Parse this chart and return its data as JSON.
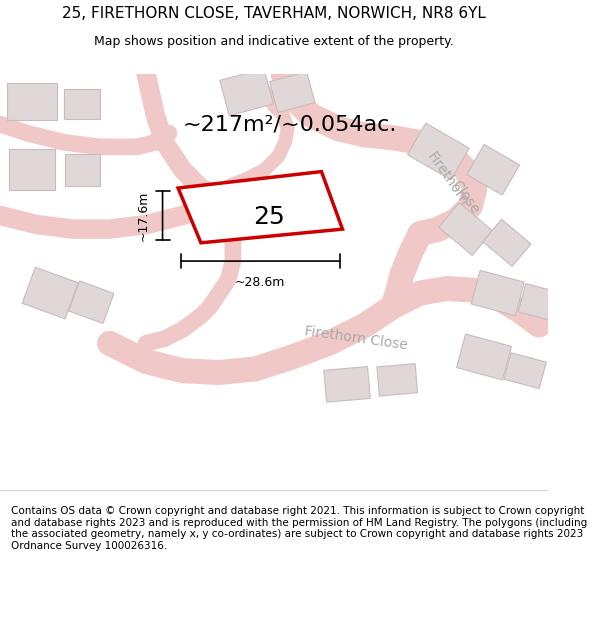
{
  "title_line1": "25, FIRETHORN CLOSE, TAVERHAM, NORWICH, NR8 6YL",
  "title_line2": "Map shows position and indicative extent of the property.",
  "footer_text": "Contains OS data © Crown copyright and database right 2021. This information is subject to Crown copyright and database rights 2023 and is reproduced with the permission of HM Land Registry. The polygons (including the associated geometry, namely x, y co-ordinates) are subject to Crown copyright and database rights 2023 Ordnance Survey 100026316.",
  "area_text": "~217m²/~0.054ac.",
  "width_label": "~28.6m",
  "height_label": "~17.6m",
  "number_label": "25",
  "bg_color": "#f5f0f0",
  "map_bg": "#f9f5f5",
  "road_color": "#f0c8c8",
  "building_color": "#e0d8d8",
  "building_edge": "#ccbbbb",
  "highlight_color": "#cc0000",
  "road_label_color": "#aaaaaa",
  "title_fontsize": 11,
  "subtitle_fontsize": 9,
  "footer_fontsize": 7.5
}
